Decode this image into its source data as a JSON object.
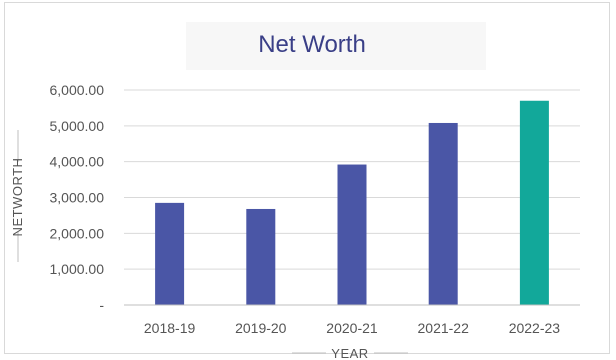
{
  "chart_data": {
    "type": "bar",
    "title": "Net Worth",
    "xlabel": "YEAR",
    "ylabel": "NETWORTH",
    "categories": [
      "2018-19",
      "2019-20",
      "2020-21",
      "2021-22",
      "2022-23"
    ],
    "values": [
      2850,
      2680,
      3920,
      5080,
      5700
    ],
    "ylim": [
      0,
      6000
    ],
    "yticks": [
      0,
      1000,
      2000,
      3000,
      4000,
      5000,
      6000
    ],
    "ytick_labels": [
      "-",
      "1,000.00",
      "2,000.00",
      "3,000.00",
      "4,000.00",
      "5,000.00",
      "6,000.00"
    ],
    "grid": true,
    "legend": "none",
    "colors": {
      "bar": "#4a56a6",
      "highlight_bar": "#12a89a",
      "title": "#3a3f87"
    },
    "highlight_index": 4
  }
}
